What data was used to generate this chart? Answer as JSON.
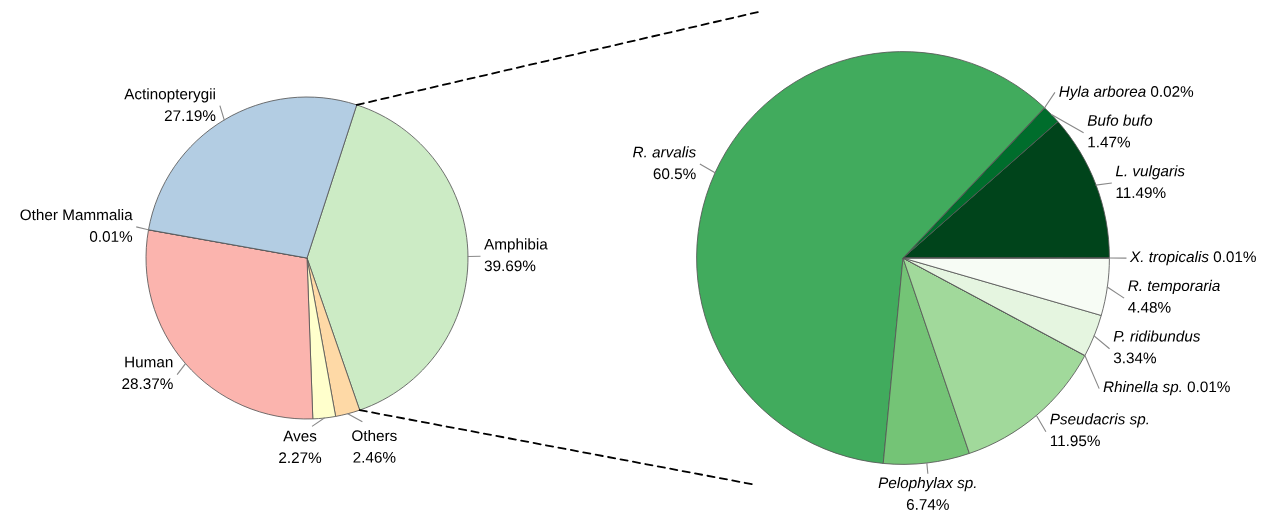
{
  "chart_data": [
    {
      "type": "pie",
      "categories": [
        "Amphibia",
        "Others",
        "Aves",
        "Human",
        "Other Mammalia",
        "Actinopterygii"
      ],
      "values": [
        39.69,
        2.46,
        2.27,
        28.37,
        0.01,
        27.19
      ],
      "value_labels": [
        "39.69%",
        "2.46%",
        "2.27%",
        "28.37%",
        "0.01%",
        "27.19%"
      ],
      "colors": [
        "#ccebc5",
        "#fed9a6",
        "#ffffcc",
        "#fbb4ae",
        "#decbe4",
        "#b3cde3"
      ]
    },
    {
      "type": "pie",
      "categories": [
        "L. vulgaris",
        "Bufo bufo",
        "Hyla arborea",
        "R. arvalis",
        "Pelophylax sp.",
        "Pseudacris sp.",
        "Rhinella sp.",
        "P. ridibundus",
        "R. temporaria",
        "X. tropicalis"
      ],
      "values": [
        11.49,
        1.47,
        0.02,
        60.5,
        6.74,
        11.95,
        0.01,
        3.34,
        4.48,
        0.01
      ],
      "value_labels": [
        "11.49%",
        "1.47%",
        "0.02%",
        "60.5%",
        "6.74%",
        "11.95%",
        "0.01%",
        "3.34%",
        "4.48%",
        "0.01%"
      ],
      "colors": [
        "#00441b",
        "#006d2c",
        "#238b45",
        "#41ab5d",
        "#74c476",
        "#a1d99b",
        "#c7e9c0",
        "#e5f5e0",
        "#f7fcf5",
        "#ffffff"
      ]
    }
  ]
}
